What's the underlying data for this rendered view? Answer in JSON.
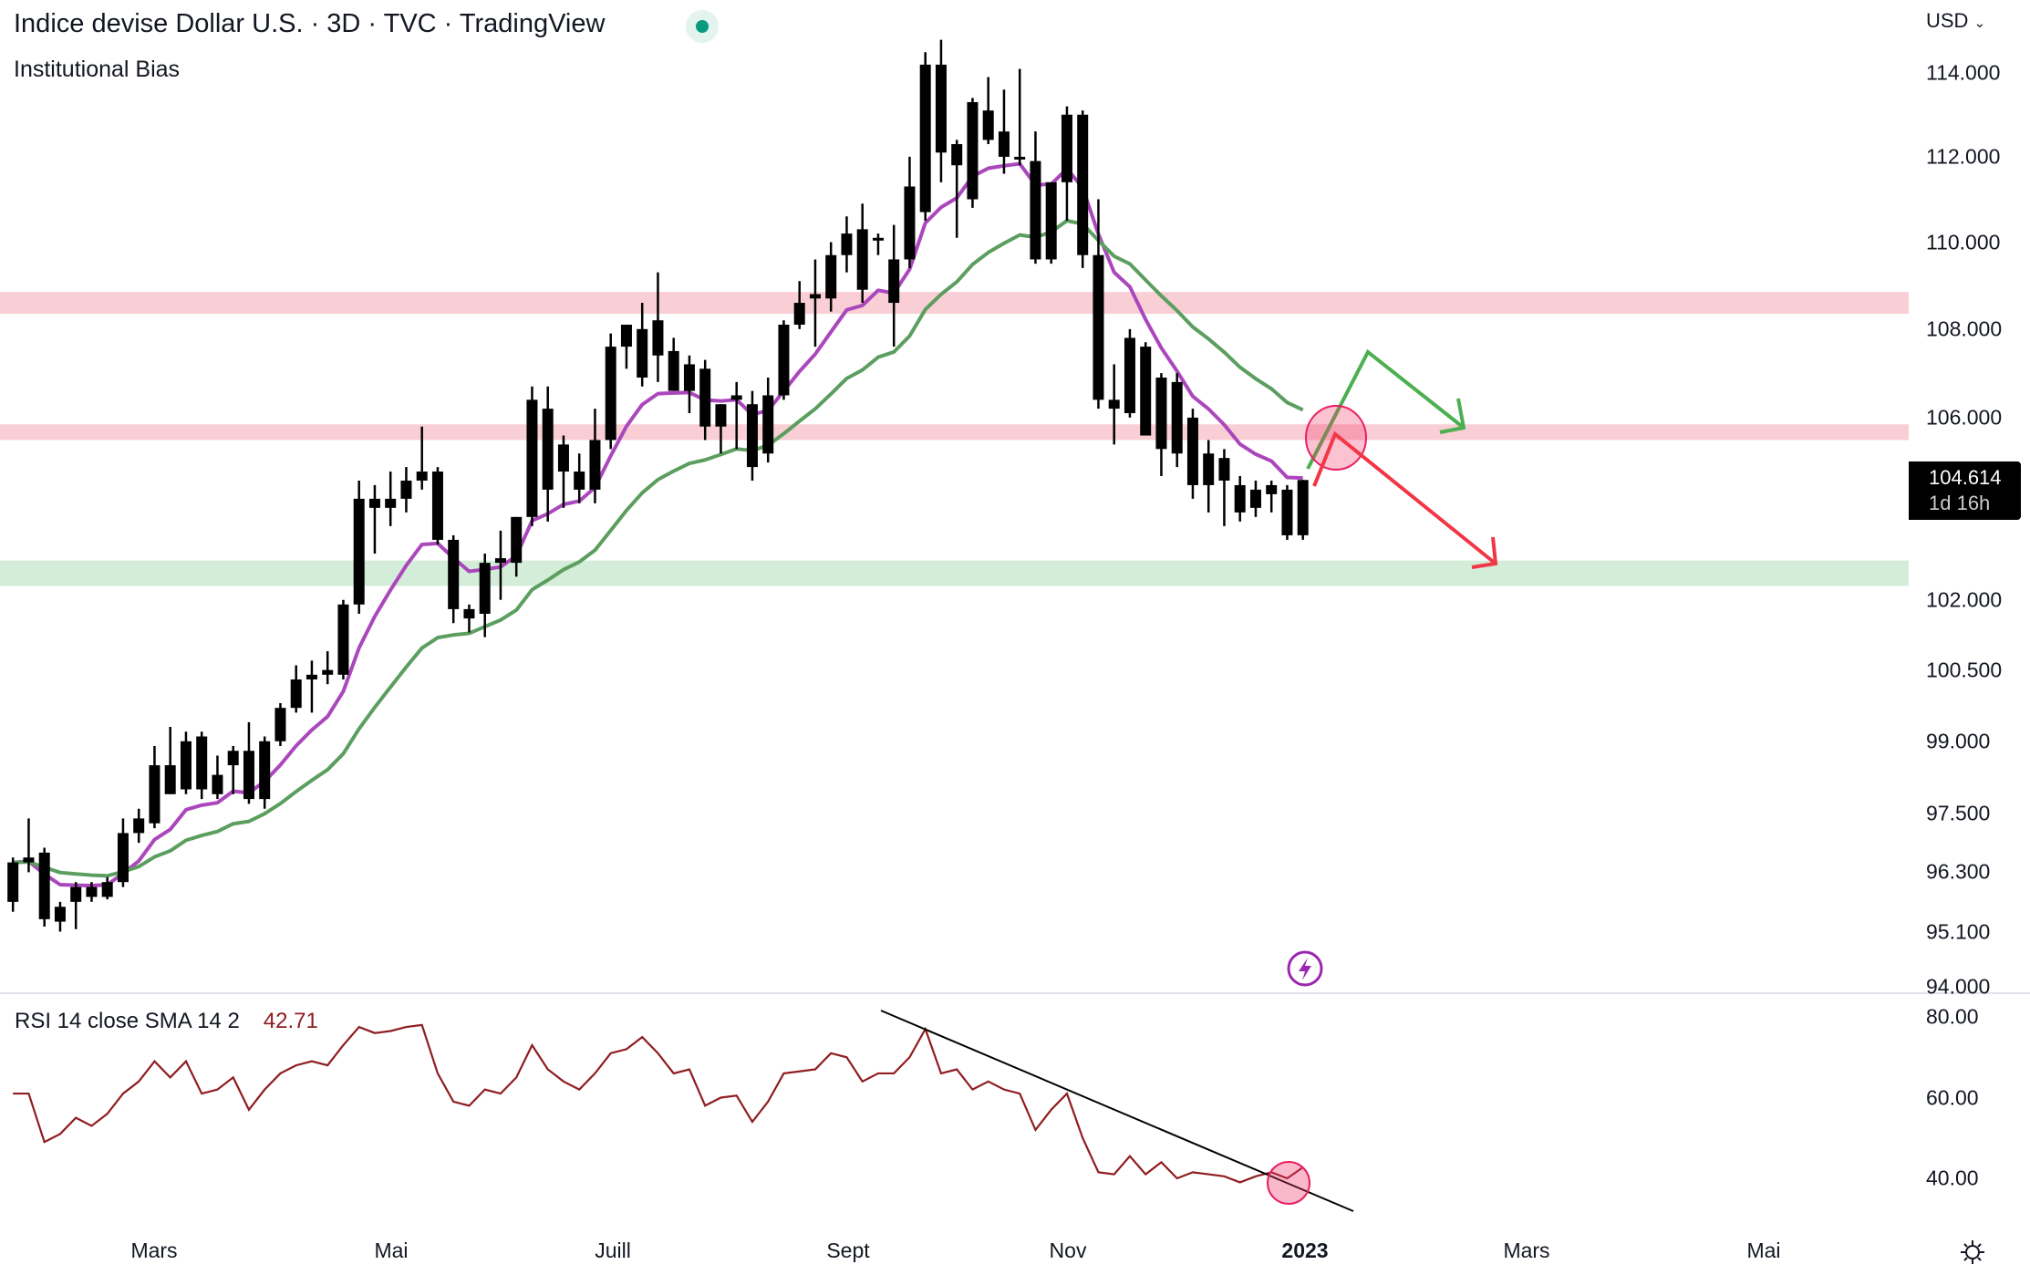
{
  "header": {
    "title": "Indice devise Dollar U.S. · 3D · TVC · TradingView",
    "live_dot_color": "#089981",
    "indicator_label": "Institutional Bias"
  },
  "price_axis": {
    "currency": "USD",
    "currency_icon": "chevron-down-icon",
    "ticks": [
      "114.000",
      "112.000",
      "110.000",
      "108.000",
      "106.000",
      "102.000",
      "100.500",
      "99.000",
      "97.500",
      "96.300",
      "95.100",
      "94.000"
    ],
    "scale": "log"
  },
  "last_price": {
    "value": "104.614",
    "countdown": "1d 16h"
  },
  "rsi": {
    "label": "RSI 14 close SMA 14 2",
    "value": "42.71",
    "ticks": [
      "80.00",
      "60.00",
      "40.00"
    ],
    "line_color": "#8f1d21"
  },
  "time_axis": {
    "labels": [
      "Mars",
      "Mai",
      "Juill",
      "Sept",
      "Nov",
      "2023",
      "Mars",
      "Mai"
    ]
  },
  "footer": {
    "settings_icon": "gear-icon"
  },
  "annotation_icon": "lightning-icon",
  "chart_data": {
    "type": "candlestick",
    "interval": "3D",
    "ylim": [
      94,
      114.6
    ],
    "yscale": "log",
    "candle_color": "#000000",
    "ma_colors": [
      "#ab47bc",
      "#5b9e5f"
    ],
    "ohlc": [
      [
        95.7,
        96.6,
        95.5,
        96.5
      ],
      [
        96.5,
        97.4,
        96.3,
        96.6
      ],
      [
        96.7,
        96.8,
        95.2,
        95.35
      ],
      [
        95.6,
        95.7,
        95.1,
        95.3
      ],
      [
        95.7,
        96.1,
        95.15,
        96.0
      ],
      [
        95.8,
        96.1,
        95.7,
        96.0
      ],
      [
        95.8,
        96.2,
        95.75,
        96.1
      ],
      [
        96.1,
        97.4,
        96.0,
        97.1
      ],
      [
        97.1,
        97.6,
        96.9,
        97.4
      ],
      [
        97.3,
        98.9,
        97.2,
        98.5
      ],
      [
        98.5,
        99.3,
        97.9,
        97.9
      ],
      [
        98.0,
        99.2,
        97.9,
        99.0
      ],
      [
        99.1,
        99.2,
        97.8,
        98.0
      ],
      [
        98.3,
        98.7,
        97.8,
        97.9
      ],
      [
        98.5,
        98.9,
        97.9,
        98.8
      ],
      [
        98.8,
        99.4,
        97.7,
        97.8
      ],
      [
        97.8,
        99.1,
        97.6,
        99.0
      ],
      [
        99.0,
        99.8,
        98.9,
        99.7
      ],
      [
        99.7,
        100.6,
        99.6,
        100.3
      ],
      [
        100.3,
        100.7,
        99.6,
        100.4
      ],
      [
        100.4,
        100.9,
        100.2,
        100.5
      ],
      [
        100.4,
        102.0,
        100.3,
        101.9
      ],
      [
        101.9,
        104.6,
        101.7,
        104.2
      ],
      [
        104.2,
        104.5,
        103.0,
        104.0
      ],
      [
        104.0,
        104.8,
        103.6,
        104.2
      ],
      [
        104.2,
        104.9,
        103.9,
        104.6
      ],
      [
        104.6,
        105.8,
        104.4,
        104.8
      ],
      [
        104.8,
        104.9,
        103.2,
        103.3
      ],
      [
        103.3,
        103.4,
        101.5,
        101.8
      ],
      [
        101.8,
        101.9,
        101.3,
        101.6
      ],
      [
        101.7,
        103.0,
        101.2,
        102.8
      ],
      [
        102.8,
        103.5,
        102.0,
        102.9
      ],
      [
        102.8,
        103.8,
        102.5,
        103.8
      ],
      [
        103.8,
        106.7,
        103.6,
        106.4
      ],
      [
        106.2,
        106.7,
        103.7,
        104.4
      ],
      [
        105.4,
        105.6,
        104.0,
        104.8
      ],
      [
        104.8,
        105.2,
        104.1,
        104.4
      ],
      [
        104.4,
        106.2,
        104.1,
        105.5
      ],
      [
        105.5,
        107.9,
        105.3,
        107.6
      ],
      [
        107.6,
        108.1,
        107.1,
        108.1
      ],
      [
        106.9,
        108.6,
        106.7,
        108.0
      ],
      [
        108.2,
        109.3,
        106.8,
        107.4
      ],
      [
        107.5,
        107.8,
        106.6,
        106.6
      ],
      [
        107.2,
        107.4,
        106.1,
        106.6
      ],
      [
        107.1,
        107.3,
        105.5,
        105.8
      ],
      [
        105.8,
        106.3,
        105.2,
        106.3
      ],
      [
        106.4,
        106.8,
        105.3,
        106.5
      ],
      [
        106.3,
        106.6,
        104.6,
        104.9
      ],
      [
        105.2,
        106.9,
        105.0,
        106.5
      ],
      [
        106.5,
        108.2,
        106.4,
        108.1
      ],
      [
        108.1,
        109.1,
        108.0,
        108.6
      ],
      [
        108.7,
        109.6,
        107.6,
        108.8
      ],
      [
        108.7,
        110.0,
        108.4,
        109.7
      ],
      [
        109.7,
        110.6,
        109.3,
        110.2
      ],
      [
        110.3,
        110.9,
        108.6,
        108.9
      ],
      [
        110.1,
        110.2,
        109.7,
        110.1
      ],
      [
        109.6,
        110.4,
        107.6,
        108.6
      ],
      [
        109.6,
        112.0,
        109.4,
        111.3
      ],
      [
        110.7,
        114.5,
        110.5,
        114.2
      ],
      [
        114.2,
        114.8,
        111.4,
        112.1
      ],
      [
        112.3,
        112.4,
        110.1,
        111.8
      ],
      [
        111.0,
        113.4,
        110.8,
        113.3
      ],
      [
        113.1,
        113.9,
        112.3,
        112.4
      ],
      [
        112.6,
        113.6,
        111.6,
        112.0
      ],
      [
        112.0,
        114.1,
        111.8,
        112.0
      ],
      [
        111.9,
        112.6,
        109.5,
        109.6
      ],
      [
        109.6,
        111.4,
        109.5,
        111.4
      ],
      [
        111.4,
        113.2,
        110.5,
        113.0
      ],
      [
        113.0,
        113.1,
        109.4,
        109.7
      ],
      [
        109.7,
        111.0,
        106.2,
        106.4
      ],
      [
        106.4,
        107.2,
        105.4,
        106.2
      ],
      [
        106.1,
        108.0,
        106.0,
        107.8
      ],
      [
        107.6,
        107.7,
        105.6,
        105.6
      ],
      [
        106.9,
        107.0,
        104.7,
        105.3
      ],
      [
        106.8,
        107.0,
        104.9,
        105.2
      ],
      [
        106.0,
        106.2,
        104.2,
        104.5
      ],
      [
        104.5,
        105.5,
        103.9,
        105.2
      ],
      [
        105.1,
        105.3,
        103.6,
        104.6
      ],
      [
        104.5,
        104.7,
        103.7,
        103.9
      ],
      [
        104.0,
        104.6,
        103.8,
        104.4
      ],
      [
        104.3,
        104.6,
        103.9,
        104.5
      ],
      [
        104.4,
        104.5,
        103.3,
        103.4
      ],
      [
        103.4,
        104.614,
        103.3,
        104.614
      ]
    ],
    "zones": [
      {
        "low": 108.35,
        "high": 108.85,
        "color": "#f9cfd5"
      },
      {
        "low": 105.5,
        "high": 105.85,
        "color": "#f9cfd5"
      },
      {
        "low": 102.3,
        "high": 102.85,
        "color": "#d4edd8"
      }
    ],
    "rsi_values": [
      61,
      61,
      49,
      51,
      55,
      53,
      56,
      61,
      64,
      69,
      65,
      69,
      61,
      62,
      65,
      57,
      62,
      66,
      68,
      69,
      68,
      73,
      77.5,
      76,
      76.5,
      77.5,
      78,
      66,
      59,
      58,
      62,
      61,
      65,
      73,
      67,
      64,
      62,
      66,
      71,
      72,
      75,
      71,
      66,
      67,
      58,
      60,
      60.5,
      54,
      59,
      66,
      66.5,
      67,
      71,
      70,
      64,
      66,
      66,
      70,
      77,
      66,
      67,
      62,
      64,
      62,
      61,
      52,
      57,
      61,
      50,
      41.5,
      41,
      45.5,
      41,
      44,
      40,
      41.5,
      41,
      40.5,
      39,
      40.5,
      41.5,
      40,
      42.71
    ],
    "rsi_ylim": [
      30,
      84
    ]
  }
}
